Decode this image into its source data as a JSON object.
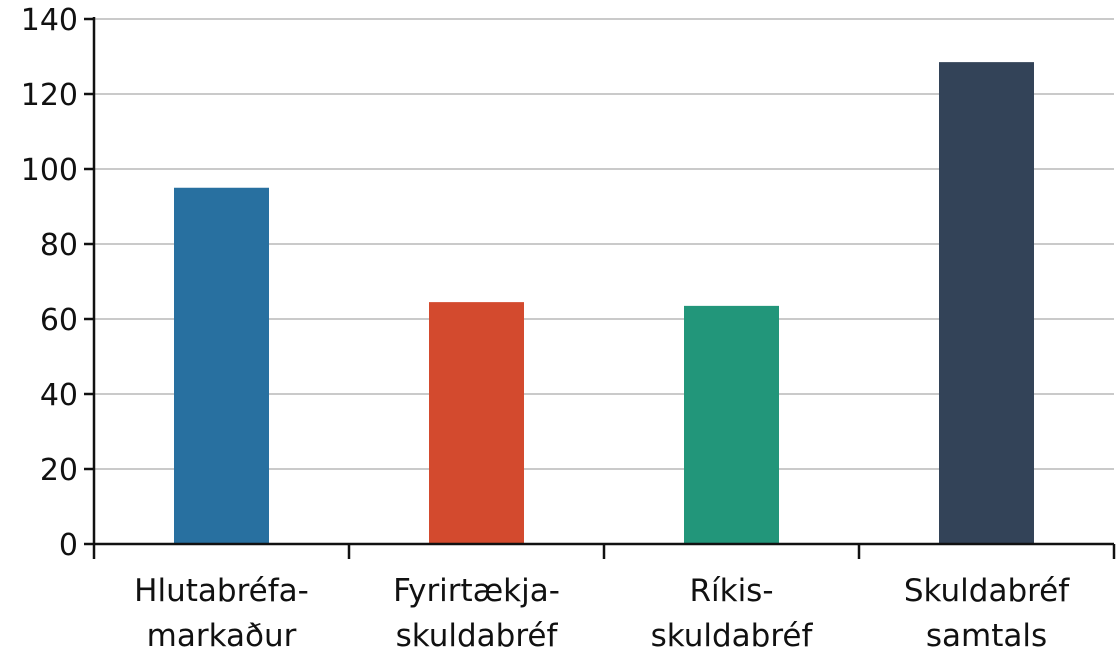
{
  "chart_data": {
    "type": "bar",
    "title": "",
    "xlabel": "",
    "ylabel": "",
    "categories": [
      [
        "Hlutabréfa-",
        "markaður"
      ],
      [
        "Fyrirtækja-",
        "skuldabréf"
      ],
      [
        "Ríkis-",
        "skuldabréf"
      ],
      [
        "Skuldabréf",
        "samtals"
      ]
    ],
    "values": [
      95,
      64.5,
      63.5,
      128.5
    ],
    "colors": [
      "#2870a0",
      "#d34a2e",
      "#22967a",
      "#334358"
    ],
    "ylim": [
      0,
      140
    ],
    "yticks": [
      "0",
      "20",
      "40",
      "60",
      "80",
      "100",
      "120",
      "140"
    ],
    "grid": true,
    "legend": "none"
  }
}
